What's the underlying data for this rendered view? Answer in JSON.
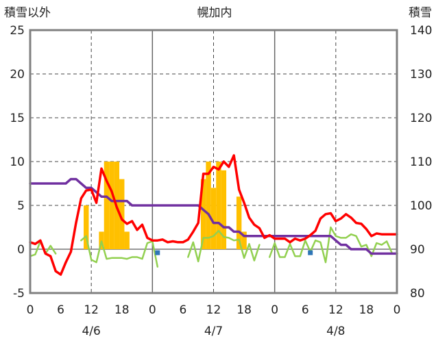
{
  "chart_data": {
    "type": "line",
    "title": "幌加内",
    "ylabel_left": "積雪以外",
    "ylabel_right": "積雪",
    "x_tick_labels": [
      "0",
      "6",
      "12",
      "18",
      "0",
      "6",
      "12",
      "18",
      "0",
      "6",
      "12",
      "18",
      "0"
    ],
    "date_labels": [
      "4/6",
      "4/7",
      "4/8"
    ],
    "left_axis": {
      "min": -5,
      "max": 25,
      "ticks": [
        -5,
        0,
        5,
        10,
        15,
        20,
        25
      ]
    },
    "right_axis": {
      "min": 80,
      "max": 140,
      "ticks": [
        80,
        90,
        100,
        110,
        120,
        130,
        140
      ]
    },
    "grid": true,
    "colors": {
      "temperature": "#ff0000",
      "snow_depth": "#7030a0",
      "precipitation": "#ffc000",
      "wind": "#92d050",
      "marker": "#2e75b6"
    },
    "hours": [
      0,
      1,
      2,
      3,
      4,
      5,
      6,
      7,
      8,
      9,
      10,
      11,
      12,
      13,
      14,
      15,
      16,
      17,
      18,
      19,
      20,
      21,
      22,
      23,
      24,
      25,
      26,
      27,
      28,
      29,
      30,
      31,
      32,
      33,
      34,
      35,
      36,
      37,
      38,
      39,
      40,
      41,
      42,
      43,
      44,
      45,
      46,
      47,
      48,
      49,
      50,
      51,
      52,
      53,
      54,
      55,
      56,
      57,
      58,
      59,
      60,
      61,
      62,
      63,
      64,
      65,
      66,
      67,
      68,
      69,
      70,
      71,
      72
    ],
    "series": [
      {
        "key": "temperature",
        "axis": "left",
        "values": [
          0.8,
          0.6,
          1.0,
          -0.5,
          -0.8,
          -2.5,
          -2.9,
          -1.5,
          -0.3,
          3.0,
          5.8,
          6.7,
          6.8,
          5.3,
          9.2,
          7.8,
          6.6,
          4.8,
          3.4,
          2.9,
          3.2,
          2.2,
          2.8,
          1.3,
          1.0,
          1.0,
          1.1,
          0.8,
          0.9,
          0.8,
          0.8,
          1.1,
          2.0,
          3.0,
          8.6,
          8.6,
          9.4,
          9.1,
          10.0,
          9.4,
          10.7,
          6.8,
          5.3,
          3.6,
          2.8,
          2.4,
          1.3,
          1.6,
          1.2,
          1.2,
          1.2,
          0.8,
          1.2,
          1.0,
          1.2,
          1.6,
          2.1,
          3.5,
          4.0,
          4.1,
          3.2,
          3.5,
          4.0,
          3.6,
          3.0,
          2.9,
          2.3,
          1.5,
          1.8,
          1.7,
          1.7,
          1.7,
          1.7
        ]
      },
      {
        "key": "snow_depth",
        "axis": "right",
        "values": [
          105,
          105,
          105,
          105,
          105,
          105,
          105,
          105,
          106,
          106,
          105,
          104,
          104,
          103,
          102,
          102,
          101,
          101,
          101,
          101,
          100,
          100,
          100,
          100,
          100,
          100,
          100,
          100,
          100,
          100,
          100,
          100,
          100,
          100,
          99,
          98,
          96,
          96,
          95,
          95,
          94,
          94,
          93,
          93,
          93,
          93,
          93,
          93,
          93,
          93,
          93,
          93,
          93,
          93,
          93,
          93,
          93,
          93,
          93,
          93,
          92,
          91,
          91,
          90,
          90,
          90,
          90,
          89,
          89,
          89,
          89,
          89,
          89
        ]
      },
      {
        "key": "wind",
        "axis": "left",
        "values": [
          -0.8,
          -0.6,
          0.9,
          -0.5,
          0.4,
          -0.5,
          null,
          null,
          null,
          null,
          1.0,
          1.5,
          -1.2,
          -1.5,
          0.9,
          -1.1,
          -1.0,
          -1.0,
          -1.0,
          -1.1,
          -0.9,
          -0.9,
          -1.1,
          0.7,
          0.9,
          -2.0,
          null,
          null,
          null,
          null,
          null,
          -0.9,
          0.8,
          -1.4,
          1.3,
          1.3,
          1.5,
          2.1,
          1.4,
          1.3,
          1.0,
          1.1,
          -1.0,
          0.6,
          -1.3,
          0.5,
          null,
          -0.9,
          0.7,
          -0.9,
          -0.9,
          0.6,
          -0.8,
          -0.8,
          1.0,
          -0.3,
          1.0,
          0.8,
          -1.5,
          2.5,
          1.5,
          1.3,
          1.3,
          1.7,
          1.5,
          0.3,
          0.5,
          -0.8,
          0.7,
          0.5,
          0.9,
          -0.4,
          null
        ]
      },
      {
        "key": "precipitation",
        "axis": "left",
        "values": [
          0,
          0,
          0,
          0,
          0,
          0,
          0,
          0,
          0,
          0,
          0,
          5,
          0,
          0,
          2,
          10,
          10,
          10,
          8,
          2,
          0,
          0,
          0,
          0,
          0,
          0,
          0,
          0,
          0,
          0,
          0,
          0,
          0,
          0,
          8,
          10,
          7,
          10,
          9,
          0,
          0,
          6,
          2,
          0,
          0,
          0,
          0,
          0,
          0,
          0,
          0,
          0,
          0,
          0,
          0,
          0,
          0,
          0,
          0,
          0,
          0,
          0,
          0,
          0,
          0,
          0,
          0,
          0,
          0,
          0,
          0,
          0,
          0
        ]
      }
    ],
    "markers": [
      {
        "hour": 25,
        "value": -0.4
      },
      {
        "hour": 55,
        "value": -0.4
      }
    ]
  }
}
